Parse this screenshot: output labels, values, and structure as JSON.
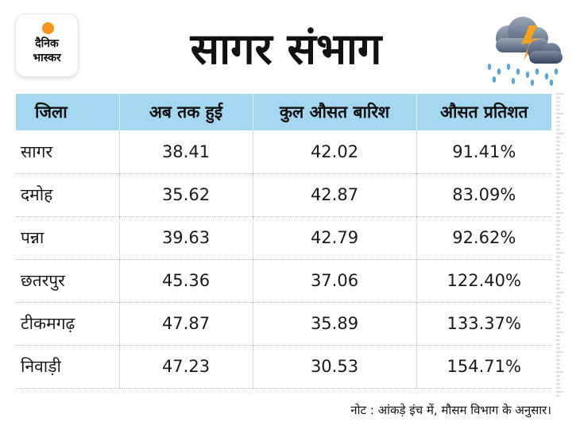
{
  "logo": {
    "line1": "दैनिक",
    "line2": "भास्कर",
    "accent": "#f7941d"
  },
  "title": "सागर संभाग",
  "weather_icon": "storm-cloud-rain-icon",
  "table": {
    "headers": [
      "जिला",
      "अब तक हुई",
      "कुल औसत बारिश",
      "औसत प्रतिशत"
    ],
    "header_bg": "#a6d7f0",
    "rows": [
      [
        "सागर",
        "38.41",
        "42.02",
        "91.41%"
      ],
      [
        "दमोह",
        "35.62",
        "42.87",
        "83.09%"
      ],
      [
        "पन्ना",
        "39.63",
        "42.79",
        "92.62%"
      ],
      [
        "छतरपुर",
        "45.36",
        "37.06",
        "122.40%"
      ],
      [
        "टीकमगढ़",
        "47.87",
        "35.89",
        "133.37%"
      ],
      [
        "निवाड़ी",
        "47.23",
        "30.53",
        "154.71%"
      ]
    ]
  },
  "note": "नोट : आंकड़े इंच में, मौसम विभाग के अनुसार।"
}
